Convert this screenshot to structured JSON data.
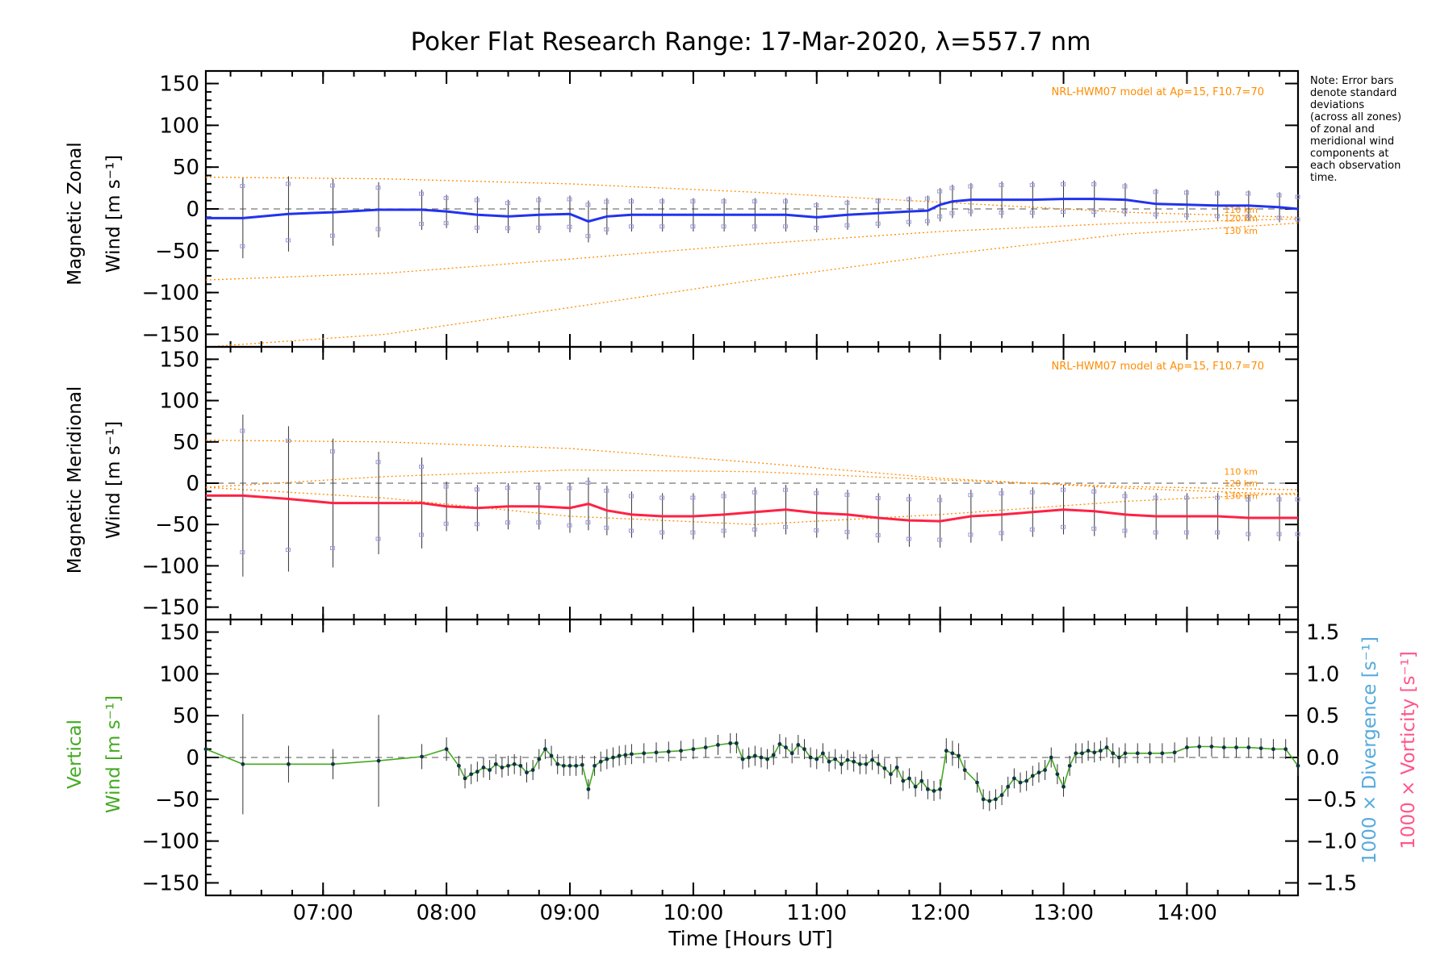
{
  "chart_data": {
    "type": "line",
    "title": "Poker Flat Research Range: 17-Mar-2020, λ=557.7 nm",
    "xlabel": "Time [Hours UT]",
    "xlim": [
      6.05,
      14.9
    ],
    "x_ticks": [
      7,
      8,
      9,
      10,
      11,
      12,
      13,
      14
    ],
    "x_tick_labels": [
      "07:00",
      "08:00",
      "09:00",
      "10:00",
      "11:00",
      "12:00",
      "13:00",
      "14:00"
    ],
    "note": [
      "Note: Error bars",
      "denote standard",
      "deviations",
      "(across all zones)",
      "of zonal and",
      "meridional wind",
      "components at",
      "each observation",
      "time."
    ],
    "colors": {
      "zonal_line": "#2233ee",
      "meridional_line": "#ff2244",
      "vertical_line": "#44aa22",
      "model": "#ff8c00",
      "zone_points": "#9999dd",
      "divergence_label": "#55aadd",
      "vorticity_label": "#ff5588"
    },
    "y_ticks": [
      150,
      100,
      50,
      0,
      -50,
      -100,
      -150
    ],
    "y_tick_labels": [
      "150",
      "100",
      "50",
      "0",
      "−50",
      "−100",
      "−150"
    ],
    "panels": [
      {
        "name": "zonal",
        "ylabel_line1": "Magnetic Zonal",
        "ylabel_line2": "Wind [m s⁻¹]",
        "ylim": [
          -165,
          165
        ],
        "model_label": "NRL-HWM07 model at Ap=15, F10.7=70",
        "model_alt_labels": [
          {
            "text": "110 km",
            "y": -1
          },
          {
            "text": "120 km",
            "y": -11
          },
          {
            "text": "130 km",
            "y": -26
          }
        ],
        "model_curves": [
          {
            "x": [
              6.05,
              7.5,
              9.0,
              10.5,
              12.0,
              13.5,
              14.9
            ],
            "y": [
              38,
              36,
              30,
              20,
              8,
              -4,
              -10
            ]
          },
          {
            "x": [
              6.05,
              7.5,
              9.0,
              10.5,
              12.0,
              13.5,
              14.9
            ],
            "y": [
              -85,
              -77,
              -60,
              -42,
              -27,
              -17,
              -12
            ]
          },
          {
            "x": [
              6.05,
              7.5,
              9.0,
              10.5,
              12.0,
              13.5,
              14.9
            ],
            "y": [
              -165,
              -150,
              -118,
              -85,
              -55,
              -30,
              -17
            ]
          }
        ],
        "series": [
          {
            "name": "zonal",
            "x": [
              6.05,
              6.35,
              6.72,
              7.08,
              7.45,
              7.8,
              8.0,
              8.25,
              8.5,
              8.75,
              9.0,
              9.15,
              9.3,
              9.5,
              9.75,
              10.0,
              10.25,
              10.5,
              10.75,
              11.0,
              11.25,
              11.5,
              11.75,
              11.9,
              12.0,
              12.1,
              12.25,
              12.5,
              12.75,
              13.0,
              13.25,
              13.5,
              13.75,
              14.0,
              14.25,
              14.5,
              14.75,
              14.9
            ],
            "y": [
              -11,
              -11,
              -6,
              -4,
              -1,
              -1,
              -3,
              -7,
              -9,
              -7,
              -6,
              -15,
              -9,
              -7,
              -7,
              -7,
              -7,
              -7,
              -7,
              -10,
              -7,
              -5,
              -3,
              -2,
              5,
              9,
              11,
              11,
              11,
              12,
              12,
              11,
              6,
              5,
              4,
              4,
              2,
              0
            ],
            "err": [
              0,
              48,
              45,
              40,
              33,
              24,
              20,
              22,
              20,
              22,
              22,
              25,
              22,
              20,
              20,
              20,
              20,
              20,
              20,
              18,
              18,
              18,
              18,
              18,
              20,
              20,
              20,
              22,
              22,
              22,
              22,
              20,
              18,
              18,
              18,
              18,
              18,
              18
            ]
          }
        ]
      },
      {
        "name": "meridional",
        "ylabel_line1": "Magnetic Meridional",
        "ylabel_line2": "Wind [m s⁻¹]",
        "ylim": [
          -165,
          165
        ],
        "model_label": "NRL-HWM07 model at Ap=15, F10.7=70",
        "model_alt_labels": [
          {
            "text": "110 km",
            "y": 14
          },
          {
            "text": "120 km",
            "y": 0
          },
          {
            "text": "130 km",
            "y": -15
          }
        ],
        "model_curves": [
          {
            "x": [
              6.05,
              7.5,
              9.0,
              10.5,
              12.0,
              13.5,
              14.9
            ],
            "y": [
              52,
              50,
              42,
              25,
              6,
              -6,
              -14
            ]
          },
          {
            "x": [
              6.05,
              7.5,
              9.0,
              10.5,
              12.0,
              13.5,
              14.9
            ],
            "y": [
              -5,
              8,
              16,
              14,
              4,
              -4,
              -8
            ]
          },
          {
            "x": [
              6.05,
              7.5,
              9.0,
              10.5,
              12.0,
              13.5,
              14.9
            ],
            "y": [
              -5,
              -18,
              -40,
              -50,
              -38,
              -22,
              -12
            ]
          }
        ],
        "series": [
          {
            "name": "meridional",
            "x": [
              6.05,
              6.35,
              6.72,
              7.08,
              7.45,
              7.8,
              8.0,
              8.25,
              8.5,
              8.75,
              9.0,
              9.15,
              9.3,
              9.5,
              9.75,
              10.0,
              10.25,
              10.5,
              10.75,
              11.0,
              11.25,
              11.5,
              11.75,
              12.0,
              12.25,
              12.5,
              12.75,
              13.0,
              13.25,
              13.5,
              13.75,
              14.0,
              14.25,
              14.5,
              14.75,
              14.9
            ],
            "y": [
              -15,
              -15,
              -19,
              -24,
              -24,
              -24,
              -28,
              -30,
              -28,
              -28,
              -30,
              -25,
              -33,
              -38,
              -40,
              -40,
              -38,
              -35,
              -32,
              -36,
              -38,
              -42,
              -45,
              -46,
              -40,
              -38,
              -35,
              -32,
              -34,
              -38,
              -40,
              -40,
              -40,
              -42,
              -42,
              -42
            ],
            "err": [
              0,
              98,
              88,
              78,
              62,
              55,
              30,
              28,
              28,
              28,
              30,
              32,
              30,
              28,
              28,
              28,
              28,
              30,
              30,
              30,
              30,
              30,
              32,
              32,
              32,
              32,
              30,
              30,
              30,
              28,
              28,
              28,
              28,
              28,
              28,
              28
            ]
          }
        ]
      },
      {
        "name": "vertical",
        "ylabel_line1": "Vertical",
        "ylabel_line2": "Wind [m s⁻¹]",
        "ylim": [
          -165,
          165
        ],
        "right_ylim": [
          -1.65,
          1.65
        ],
        "right_ticks": [
          1.5,
          1.0,
          0.5,
          0.0,
          -0.5,
          -1.0,
          -1.5
        ],
        "right_tick_labels": [
          "1.5",
          "1.0",
          "0.5",
          "0.0",
          "−0.5",
          "−1.0",
          "−1.5"
        ],
        "right_label_divergence": "1000 × Divergence [s⁻¹]",
        "right_label_vorticity": "1000 × Vorticity [s⁻¹]",
        "series": [
          {
            "name": "vertical",
            "x": [
              6.05,
              6.35,
              6.72,
              7.08,
              7.45,
              7.8,
              8.0,
              8.1,
              8.15,
              8.2,
              8.25,
              8.3,
              8.35,
              8.4,
              8.45,
              8.5,
              8.55,
              8.6,
              8.65,
              8.7,
              8.75,
              8.8,
              8.85,
              8.9,
              8.95,
              9.0,
              9.05,
              9.1,
              9.15,
              9.2,
              9.25,
              9.3,
              9.35,
              9.4,
              9.45,
              9.5,
              9.6,
              9.7,
              9.8,
              9.9,
              10.0,
              10.1,
              10.2,
              10.3,
              10.35,
              10.4,
              10.45,
              10.5,
              10.55,
              10.6,
              10.65,
              10.7,
              10.75,
              10.8,
              10.85,
              10.9,
              10.95,
              11.0,
              11.05,
              11.1,
              11.15,
              11.2,
              11.25,
              11.3,
              11.35,
              11.4,
              11.45,
              11.5,
              11.55,
              11.6,
              11.65,
              11.7,
              11.75,
              11.8,
              11.85,
              11.9,
              11.95,
              12.0,
              12.05,
              12.1,
              12.15,
              12.2,
              12.3,
              12.35,
              12.4,
              12.45,
              12.5,
              12.55,
              12.6,
              12.65,
              12.7,
              12.75,
              12.8,
              12.85,
              12.9,
              12.95,
              13.0,
              13.05,
              13.1,
              13.15,
              13.2,
              13.25,
              13.3,
              13.35,
              13.4,
              13.45,
              13.5,
              13.6,
              13.7,
              13.8,
              13.9,
              14.0,
              14.1,
              14.2,
              14.3,
              14.4,
              14.5,
              14.6,
              14.7,
              14.8,
              14.9
            ],
            "y": [
              10,
              -8,
              -8,
              -8,
              -4,
              1,
              10,
              -10,
              -25,
              -20,
              -17,
              -12,
              -15,
              -8,
              -12,
              -10,
              -8,
              -10,
              -18,
              -15,
              -2,
              10,
              2,
              -8,
              -10,
              -10,
              -10,
              -9,
              -38,
              -10,
              -5,
              -2,
              0,
              2,
              3,
              4,
              5,
              6,
              7,
              8,
              10,
              12,
              15,
              17,
              17,
              -2,
              0,
              2,
              0,
              -2,
              3,
              16,
              12,
              5,
              15,
              10,
              0,
              -2,
              5,
              -5,
              -2,
              -8,
              -3,
              -5,
              -8,
              -8,
              -3,
              -8,
              -13,
              -20,
              -12,
              -28,
              -25,
              -35,
              -28,
              -38,
              -40,
              -38,
              8,
              5,
              2,
              -15,
              -30,
              -50,
              -52,
              -50,
              -45,
              -35,
              -25,
              -30,
              -28,
              -22,
              -18,
              -15,
              0,
              -20,
              -35,
              -10,
              5,
              5,
              8,
              6,
              8,
              12,
              5,
              0,
              5,
              5,
              5,
              5,
              6,
              12,
              13,
              13,
              12,
              12,
              12,
              11,
              10,
              10,
              -10
            ],
            "err": [
              0,
              60,
              22,
              18,
              55,
              15,
              14,
              12,
              12,
              12,
              12,
              12,
              12,
              12,
              12,
              12,
              12,
              12,
              12,
              12,
              12,
              12,
              12,
              12,
              12,
              12,
              12,
              12,
              12,
              12,
              12,
              12,
              12,
              12,
              12,
              12,
              12,
              12,
              12,
              12,
              12,
              12,
              12,
              12,
              12,
              12,
              12,
              12,
              12,
              12,
              12,
              12,
              12,
              12,
              12,
              12,
              12,
              12,
              12,
              12,
              12,
              12,
              12,
              12,
              12,
              12,
              12,
              12,
              12,
              12,
              12,
              12,
              12,
              12,
              12,
              12,
              12,
              12,
              15,
              15,
              15,
              12,
              12,
              12,
              12,
              12,
              12,
              12,
              12,
              12,
              12,
              12,
              12,
              12,
              12,
              12,
              12,
              12,
              12,
              12,
              12,
              12,
              12,
              12,
              12,
              12,
              12,
              12,
              12,
              12,
              12,
              12,
              12,
              12,
              12,
              12,
              12,
              12,
              12,
              12,
              12
            ]
          }
        ]
      }
    ]
  }
}
